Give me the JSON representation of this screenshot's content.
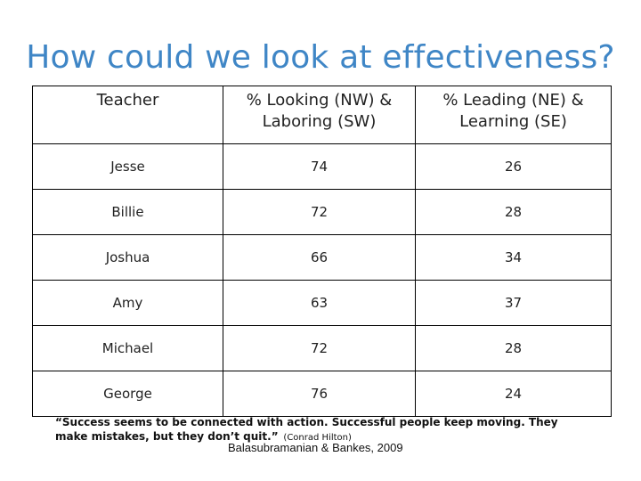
{
  "title": "How could we look at effectiveness?",
  "table": {
    "headers": [
      "Teacher",
      "% Looking (NW) & Laboring (SW)",
      "% Leading (NE) & Learning (SE)"
    ],
    "rows": [
      [
        "Jesse",
        "74",
        "26"
      ],
      [
        "Billie",
        "72",
        "28"
      ],
      [
        "Joshua",
        "66",
        "34"
      ],
      [
        "Amy",
        "63",
        "37"
      ],
      [
        "Michael",
        "72",
        "28"
      ],
      [
        "George",
        "76",
        "24"
      ]
    ]
  },
  "quote": {
    "text": "“Success seems to be connected with action. Successful people keep moving. They make mistakes, but they don’t quit.”",
    "author": "(Conrad Hilton)"
  },
  "citation": "Balasubramanian & Bankes, 2009"
}
